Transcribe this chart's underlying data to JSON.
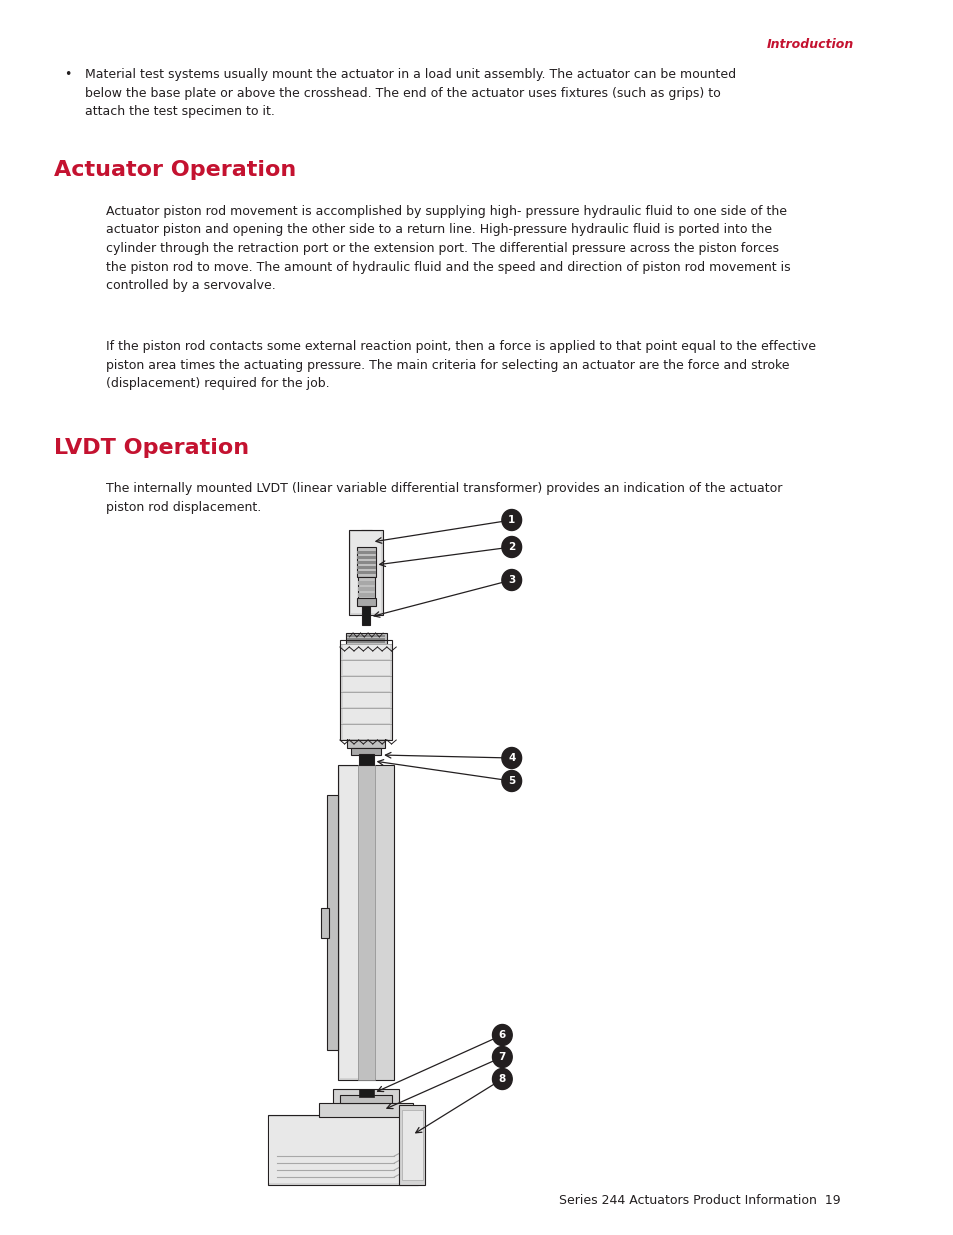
{
  "page_background": "#ffffff",
  "header_text": "Introduction",
  "header_color": "#c41230",
  "header_fontsize": 9,
  "bullet_text": "Material test systems usually mount the actuator in a load unit assembly. The actuator can be mounted\nbelow the base plate or above the crosshead. The end of the actuator uses fixtures (such as grips) to\nattach the test specimen to it.",
  "section1_title": "Actuator Operation",
  "section1_color": "#c41230",
  "section1_fontsize": 16,
  "section1_para1": "Actuator piston rod movement is accomplished by supplying high- pressure hydraulic fluid to one side of the\nactuator piston and opening the other side to a return line. High-pressure hydraulic fluid is ported into the\ncylinder through the retraction port or the extension port. The differential pressure across the piston forces\nthe piston rod to move. The amount of hydraulic fluid and the speed and direction of piston rod movement is\ncontrolled by a servovalve.",
  "section1_para2": "If the piston rod contacts some external reaction point, then a force is applied to that point equal to the effective\npiston area times the actuating pressure. The main criteria for selecting an actuator are the force and stroke\n(displacement) required for the job.",
  "section2_title": "LVDT Operation",
  "section2_color": "#c41230",
  "section2_fontsize": 16,
  "section2_para": "The internally mounted LVDT (linear variable differential transformer) provides an indication of the actuator\npiston rod displacement.",
  "footer_text": "Series 244 Actuators Product Information  19",
  "footer_fontsize": 9,
  "body_fontsize": 9,
  "body_color": "#231f20"
}
